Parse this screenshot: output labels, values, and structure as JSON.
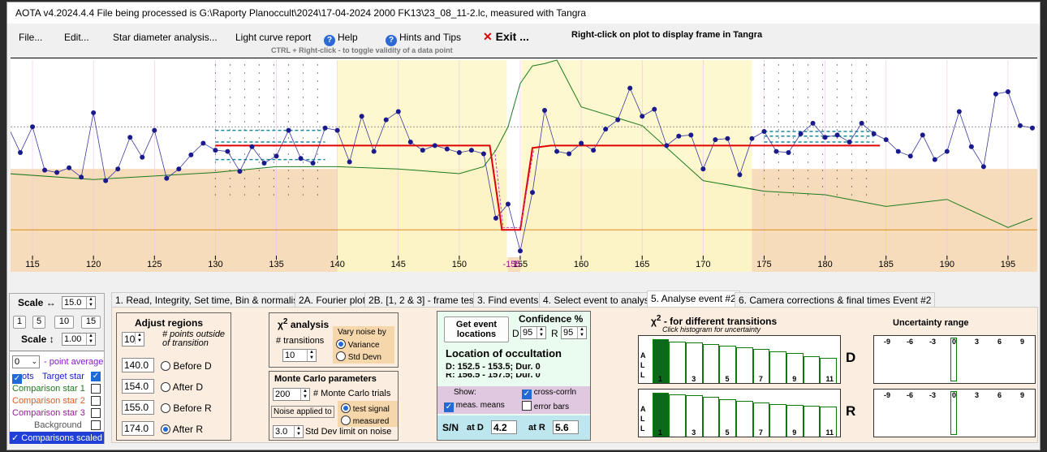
{
  "title": "AOTA v4.2024.4.4    File being processed is G:\\Raporty Planoccult\\2024\\17-04-2024  2000 FK13\\23_08_11-2.lc, measured with Tangra",
  "menu": {
    "file": "File...",
    "edit": "Edit...",
    "star_diameter": "Star diameter analysis...",
    "light_curve": "Light curve report",
    "help": "Help",
    "hints": "Hints and Tips",
    "exit_icon": "✕",
    "exit": "Exit ...",
    "right_click": "Right-click on plot to display frame in Tangra"
  },
  "hint": "CTRL + Right-click  -  to toggle validity of a data point",
  "colors": {
    "accent": "#1f6ad6",
    "highlight_yellow": "#fdf7c8",
    "band_orange": "#f6dcbb",
    "red_fit": "#e00000",
    "green_curve": "#1e7a1e",
    "points": "#1a1a8c"
  },
  "chart_data": {
    "type": "line",
    "x_ticks": [
      115,
      120,
      125,
      130,
      135,
      140,
      145,
      150,
      155,
      160,
      165,
      170,
      175,
      180,
      185,
      190,
      195
    ],
    "x_range": [
      113.2,
      197.4
    ],
    "y_range": [
      -0.12,
      1.55
    ],
    "main_series": {
      "x": [
        113,
        114,
        115,
        116,
        117,
        118,
        119,
        120,
        121,
        122,
        123,
        124,
        125,
        126,
        127,
        128,
        129,
        130,
        131,
        132,
        133,
        134,
        135,
        136,
        137,
        138,
        139,
        140,
        141,
        142,
        143,
        144,
        145,
        146,
        147,
        148,
        149,
        150,
        151,
        152,
        153,
        154,
        155,
        156,
        157,
        158,
        159,
        160,
        161,
        162,
        163,
        164,
        165,
        166,
        167,
        168,
        169,
        170,
        171,
        172,
        173,
        174,
        175,
        176,
        177,
        178,
        179,
        180,
        181,
        182,
        183,
        184,
        185,
        186,
        187,
        188,
        189,
        190,
        191,
        192,
        193,
        194,
        195,
        196,
        197
      ],
      "y": [
        0.98,
        0.76,
        0.98,
        0.61,
        0.59,
        0.63,
        0.55,
        1.1,
        0.52,
        0.62,
        0.89,
        0.72,
        0.95,
        0.54,
        0.62,
        0.74,
        0.84,
        0.78,
        0.77,
        0.6,
        0.81,
        0.67,
        0.73,
        0.95,
        0.71,
        0.67,
        0.97,
        0.95,
        0.68,
        1.07,
        0.77,
        1.04,
        1.11,
        0.85,
        0.78,
        0.82,
        0.79,
        0.76,
        0.78,
        0.75,
        0.2,
        0.32,
        -0.08,
        0.42,
        1.12,
        0.77,
        0.75,
        0.84,
        0.78,
        0.96,
        1.04,
        1.31,
        1.07,
        1.13,
        0.82,
        0.9,
        0.91,
        0.62,
        0.87,
        0.88,
        0.57,
        0.88,
        0.94,
        0.77,
        0.76,
        0.92,
        1.01,
        0.89,
        0.91,
        0.85,
        1.01,
        0.92,
        0.87,
        0.77,
        0.73,
        0.91,
        0.7,
        0.77,
        1.11,
        0.81,
        0.64,
        1.26,
        1.28,
        0.99,
        0.97
      ]
    },
    "fit_series": {
      "x": [
        130,
        152.5,
        153.5,
        155,
        156,
        157.5,
        184.5
      ],
      "y": [
        0.82,
        0.82,
        0.1,
        0.1,
        0.8,
        0.82,
        0.82
      ]
    },
    "green_series": {
      "x": [
        113,
        120,
        125,
        130,
        135,
        140,
        145,
        150,
        152,
        153,
        154,
        155,
        156,
        157,
        158,
        160,
        165,
        170,
        175,
        180,
        185,
        190,
        195,
        197
      ],
      "y": [
        0.58,
        0.53,
        0.56,
        0.59,
        0.64,
        0.64,
        0.62,
        0.58,
        0.64,
        0.78,
        0.98,
        1.35,
        1.5,
        1.52,
        1.55,
        1.15,
        0.99,
        0.52,
        0.43,
        0.4,
        0.3,
        0.36,
        0.12,
        0.2
      ]
    },
    "data_labels": [
      "-155"
    ]
  },
  "left": {
    "scale_h_label": "Scale ↔",
    "scale_h_value": "15.0",
    "scale_buttons": [
      "1",
      "5",
      "10",
      "15"
    ],
    "scale_v_label": "Scale ↕",
    "scale_v_value": "1.00",
    "point_avg_value": "0",
    "point_avg_label": "- point average",
    "plots_label": "ots",
    "target_star": "Target star",
    "comp1": "Comparison star 1",
    "comp2": "Comparison star 2",
    "comp3": "Comparison star 3",
    "background": "Background",
    "comparisons_scaled": "Comparisons scaled"
  },
  "tabs": [
    "1.  Read, Integrity, Set time, Bin & normalise",
    "2A. Fourier plot",
    "2B. [1, 2 & 3] - frame test",
    "3. Find events",
    "4. Select event to analyse",
    "5. Analyse event #2",
    "6. Camera corrections & final times Event #2"
  ],
  "adjust": {
    "title": "Adjust regions",
    "points_value": "10",
    "points_label": "# points outside of transition",
    "before_d": "140.0",
    "after_d": "154.0",
    "before_r": "155.0",
    "after_r": "174.0",
    "before_d_label": "Before D",
    "after_d_label": "After D",
    "before_r_label": "Before R",
    "after_r_label": "After R"
  },
  "chi": {
    "title": "χ",
    "sup": "2",
    "title_rest": " analysis",
    "transitions_label": "# transitions",
    "transitions_value": "10",
    "vary_label": "Vary noise by",
    "variance": "Variance",
    "std_devn": "Std Devn"
  },
  "monte": {
    "title": "Monte Carlo parameters",
    "trials_value": "200",
    "trials_label": "# Monte Carlo trials",
    "noise_applied": "Noise applied to",
    "test_signal": "test signal",
    "measured": "measured",
    "sd_value": "3.0",
    "sd_label": "Std Dev limit on noise"
  },
  "event": {
    "get_locations": "Get event locations",
    "confidence": "Confidence %",
    "d_label": "D",
    "d_value": "95",
    "r_label": "R",
    "r_value": "95",
    "loc_title": "Location of occultation",
    "d_line": "D: 152.5 - 153.5; Dur. 0",
    "r_line": "R: 156.5 - 157.5; Dur. 0",
    "show": "Show:",
    "cross_corrln": "cross-corrln",
    "meas_means": "meas. means",
    "error_bars": "error bars",
    "sn": "S/N",
    "at_d": "at D",
    "at_d_value": "4.2",
    "at_r": "at R",
    "at_r_value": "5.6"
  },
  "hist": {
    "title": "χ",
    "sup": "2",
    "title_rest": " - for different transitions",
    "subtitle": "Click histogram for uncertainty",
    "all_label": [
      "A",
      "L",
      "L"
    ],
    "ticks": [
      "1",
      "3",
      "5",
      "7",
      "9",
      "11"
    ],
    "d_heights": [
      1,
      0.95,
      0.92,
      0.88,
      0.85,
      0.82,
      0.78,
      0.72,
      0.68,
      0.62,
      0.58
    ],
    "r_heights": [
      1,
      0.97,
      0.94,
      0.9,
      0.86,
      0.82,
      0.78,
      0.75,
      0.72,
      0.7,
      0.68
    ],
    "d_label": "D",
    "r_label": "R"
  },
  "uncert": {
    "title": "Uncertainty range",
    "ticks": [
      "-9",
      "-6",
      "-3",
      "0",
      "3",
      "6",
      "9"
    ]
  }
}
